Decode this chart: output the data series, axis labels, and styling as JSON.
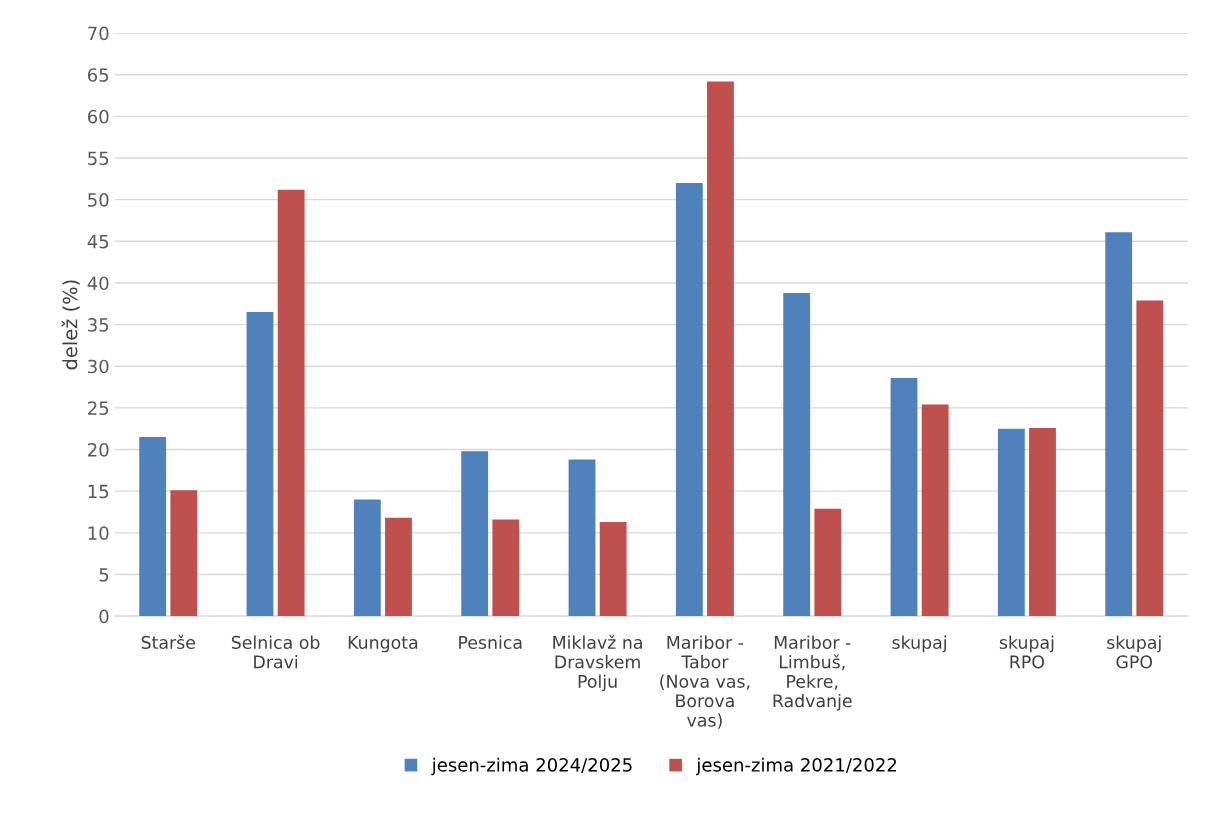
{
  "chart_data": {
    "type": "bar",
    "ylabel": "delež (%)",
    "categories": [
      "Starše",
      "Selnica ob\nDravi",
      "Kungota",
      "Pesnica",
      "Miklavž na\nDravskem\nPolju",
      "Maribor -\nTabor\n(Nova vas,\nBorova\nvas)",
      "Maribor -\nLimbuš,\nPekre,\nRadvanje",
      "skupaj",
      "skupaj\nRPO",
      "skupaj\nGPO"
    ],
    "series": [
      {
        "name": "jesen-zima 2024/2025",
        "color": "#4f81bd",
        "values": [
          21.5,
          36.5,
          14.0,
          19.8,
          18.8,
          52.0,
          38.8,
          28.6,
          22.5,
          46.1
        ]
      },
      {
        "name": "jesen-zima 2021/2022",
        "color": "#c0504d",
        "values": [
          15.1,
          51.2,
          11.8,
          11.6,
          11.3,
          64.2,
          12.9,
          25.4,
          22.6,
          37.9
        ]
      }
    ],
    "ylim": [
      0,
      70
    ],
    "yticks": [
      0,
      5,
      10,
      15,
      20,
      25,
      30,
      35,
      40,
      45,
      50,
      55,
      60,
      65,
      70
    ],
    "grid": "y",
    "legend": "bottom"
  }
}
